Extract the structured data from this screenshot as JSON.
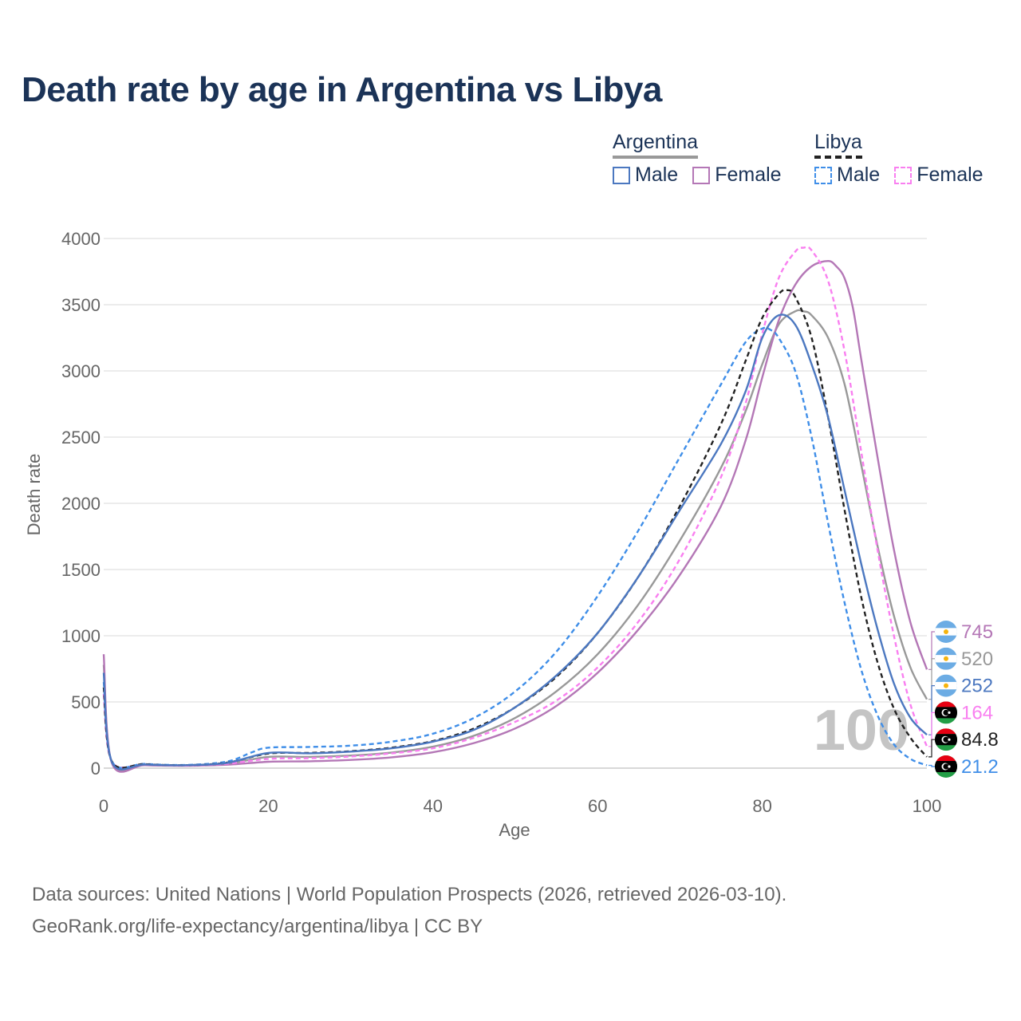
{
  "title": "Death rate by age in Argentina vs Libya",
  "legend": {
    "argentina": {
      "label": "Argentina",
      "male": "Male",
      "female": "Female"
    },
    "libya": {
      "label": "Libya",
      "male": "Male",
      "female": "Female"
    }
  },
  "colors": {
    "arg_male": "#4c78c0",
    "arg_female": "#b477b6",
    "arg_total": "#999999",
    "lby_male": "#3f8ee8",
    "lby_female": "#f97ff0",
    "lby_total": "#222222"
  },
  "watermark_year": "100",
  "footer": {
    "line1": "Data sources: United Nations | World Population Prospects (2026, retrieved 2026-03-10).",
    "line2": "GeoRank.org/life-expectancy/argentina/libya | CC BY"
  },
  "chart_data": {
    "type": "line",
    "xlabel": "Age",
    "ylabel": "Death rate",
    "xlim": [
      0,
      100
    ],
    "ylim": [
      0,
      4000
    ],
    "x_ticks": [
      0,
      20,
      40,
      60,
      80,
      100
    ],
    "y_ticks": [
      0,
      500,
      1000,
      1500,
      2000,
      2500,
      3000,
      3500,
      4000
    ],
    "grid": true,
    "series": [
      {
        "key": "arg_male",
        "name": "Argentina Male",
        "country": "argentina",
        "dashed": false,
        "end_label": "252",
        "points": [
          [
            0,
            720
          ],
          [
            1,
            45
          ],
          [
            5,
            28
          ],
          [
            10,
            22
          ],
          [
            15,
            40
          ],
          [
            20,
            115
          ],
          [
            25,
            112
          ],
          [
            30,
            125
          ],
          [
            35,
            150
          ],
          [
            40,
            200
          ],
          [
            45,
            290
          ],
          [
            50,
            460
          ],
          [
            55,
            700
          ],
          [
            60,
            1020
          ],
          [
            65,
            1450
          ],
          [
            70,
            1950
          ],
          [
            75,
            2450
          ],
          [
            78,
            2850
          ],
          [
            80,
            3250
          ],
          [
            82,
            3420
          ],
          [
            84,
            3350
          ],
          [
            86,
            3050
          ],
          [
            88,
            2650
          ],
          [
            90,
            2100
          ],
          [
            92,
            1550
          ],
          [
            94,
            1050
          ],
          [
            96,
            640
          ],
          [
            98,
            380
          ],
          [
            100,
            252
          ]
        ]
      },
      {
        "key": "arg_female",
        "name": "Argentina Female",
        "country": "argentina",
        "dashed": false,
        "end_label": "745",
        "points": [
          [
            0,
            860
          ],
          [
            1,
            38
          ],
          [
            5,
            22
          ],
          [
            10,
            18
          ],
          [
            15,
            26
          ],
          [
            20,
            48
          ],
          [
            25,
            52
          ],
          [
            30,
            62
          ],
          [
            35,
            82
          ],
          [
            40,
            120
          ],
          [
            45,
            190
          ],
          [
            50,
            300
          ],
          [
            55,
            470
          ],
          [
            60,
            720
          ],
          [
            65,
            1050
          ],
          [
            70,
            1460
          ],
          [
            75,
            1980
          ],
          [
            78,
            2480
          ],
          [
            80,
            2950
          ],
          [
            82,
            3380
          ],
          [
            84,
            3650
          ],
          [
            86,
            3790
          ],
          [
            88,
            3830
          ],
          [
            89,
            3790
          ],
          [
            90,
            3700
          ],
          [
            91,
            3480
          ],
          [
            92,
            3100
          ],
          [
            94,
            2350
          ],
          [
            96,
            1650
          ],
          [
            98,
            1100
          ],
          [
            100,
            745
          ]
        ]
      },
      {
        "key": "arg_total",
        "name": "Argentina Total",
        "country": "argentina",
        "dashed": false,
        "end_label": "520",
        "points": [
          [
            0,
            780
          ],
          [
            1,
            42
          ],
          [
            5,
            25
          ],
          [
            10,
            20
          ],
          [
            15,
            34
          ],
          [
            20,
            85
          ],
          [
            25,
            85
          ],
          [
            30,
            95
          ],
          [
            35,
            118
          ],
          [
            40,
            162
          ],
          [
            45,
            245
          ],
          [
            50,
            380
          ],
          [
            55,
            580
          ],
          [
            60,
            860
          ],
          [
            65,
            1240
          ],
          [
            70,
            1720
          ],
          [
            75,
            2270
          ],
          [
            78,
            2700
          ],
          [
            80,
            3050
          ],
          [
            82,
            3350
          ],
          [
            84,
            3450
          ],
          [
            85,
            3450
          ],
          [
            86,
            3420
          ],
          [
            88,
            3250
          ],
          [
            90,
            2900
          ],
          [
            92,
            2300
          ],
          [
            94,
            1680
          ],
          [
            96,
            1150
          ],
          [
            98,
            760
          ],
          [
            100,
            520
          ]
        ]
      },
      {
        "key": "lby_male",
        "name": "Libya Male",
        "country": "libya",
        "dashed": true,
        "end_label": "21.2",
        "points": [
          [
            0,
            650
          ],
          [
            1,
            52
          ],
          [
            5,
            32
          ],
          [
            10,
            24
          ],
          [
            15,
            50
          ],
          [
            18,
            120
          ],
          [
            20,
            155
          ],
          [
            25,
            160
          ],
          [
            30,
            170
          ],
          [
            35,
            200
          ],
          [
            40,
            260
          ],
          [
            45,
            380
          ],
          [
            50,
            580
          ],
          [
            55,
            880
          ],
          [
            60,
            1300
          ],
          [
            65,
            1800
          ],
          [
            70,
            2350
          ],
          [
            75,
            2900
          ],
          [
            78,
            3220
          ],
          [
            80,
            3320
          ],
          [
            81,
            3310
          ],
          [
            82,
            3250
          ],
          [
            84,
            3000
          ],
          [
            86,
            2500
          ],
          [
            88,
            1850
          ],
          [
            90,
            1250
          ],
          [
            92,
            750
          ],
          [
            94,
            400
          ],
          [
            96,
            180
          ],
          [
            98,
            70
          ],
          [
            100,
            21.2
          ]
        ]
      },
      {
        "key": "lby_female",
        "name": "Libya Female",
        "country": "libya",
        "dashed": true,
        "end_label": "164",
        "points": [
          [
            0,
            560
          ],
          [
            1,
            48
          ],
          [
            5,
            28
          ],
          [
            10,
            20
          ],
          [
            15,
            34
          ],
          [
            20,
            70
          ],
          [
            25,
            75
          ],
          [
            30,
            88
          ],
          [
            35,
            112
          ],
          [
            40,
            150
          ],
          [
            45,
            230
          ],
          [
            50,
            350
          ],
          [
            55,
            510
          ],
          [
            60,
            760
          ],
          [
            65,
            1110
          ],
          [
            70,
            1580
          ],
          [
            75,
            2200
          ],
          [
            78,
            2760
          ],
          [
            80,
            3280
          ],
          [
            82,
            3700
          ],
          [
            84,
            3900
          ],
          [
            85,
            3930
          ],
          [
            86,
            3910
          ],
          [
            88,
            3680
          ],
          [
            90,
            3150
          ],
          [
            92,
            2400
          ],
          [
            94,
            1650
          ],
          [
            96,
            1000
          ],
          [
            98,
            480
          ],
          [
            100,
            164
          ]
        ]
      },
      {
        "key": "lby_total",
        "name": "Libya Total",
        "country": "libya",
        "dashed": true,
        "end_label": "84.8",
        "points": [
          [
            0,
            610
          ],
          [
            1,
            50
          ],
          [
            5,
            30
          ],
          [
            10,
            22
          ],
          [
            15,
            42
          ],
          [
            20,
            110
          ],
          [
            25,
            115
          ],
          [
            30,
            128
          ],
          [
            35,
            155
          ],
          [
            40,
            205
          ],
          [
            45,
            300
          ],
          [
            50,
            460
          ],
          [
            55,
            690
          ],
          [
            60,
            1020
          ],
          [
            65,
            1450
          ],
          [
            70,
            1980
          ],
          [
            75,
            2600
          ],
          [
            78,
            3080
          ],
          [
            80,
            3400
          ],
          [
            82,
            3580
          ],
          [
            83,
            3610
          ],
          [
            84,
            3560
          ],
          [
            86,
            3250
          ],
          [
            88,
            2650
          ],
          [
            90,
            1950
          ],
          [
            92,
            1300
          ],
          [
            94,
            800
          ],
          [
            96,
            450
          ],
          [
            98,
            230
          ],
          [
            100,
            84.8
          ]
        ]
      }
    ],
    "end_label_order": [
      "arg_female",
      "arg_total",
      "arg_male",
      "lby_female",
      "lby_total",
      "lby_male"
    ]
  }
}
